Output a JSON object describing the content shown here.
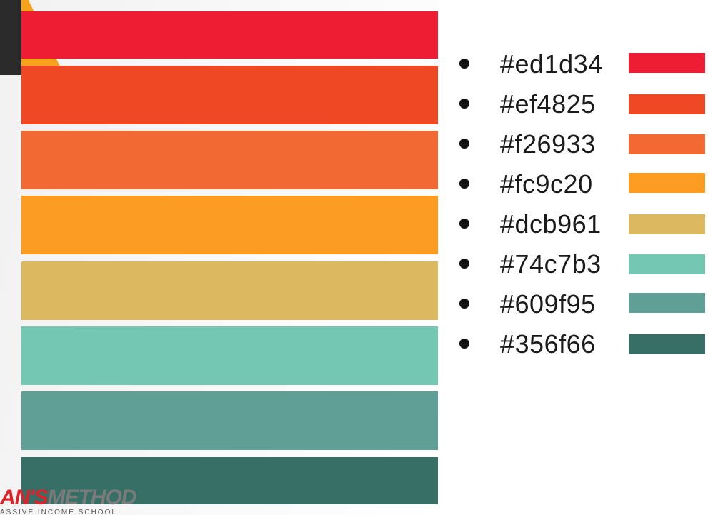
{
  "palette": [
    {
      "hex": "#ed1d34",
      "color": "#ed1d34"
    },
    {
      "hex": "#ef4825",
      "color": "#ef4825"
    },
    {
      "hex": "#f26933",
      "color": "#f26933"
    },
    {
      "hex": "#fc9c20",
      "color": "#fc9c20"
    },
    {
      "hex": "#dcb961",
      "color": "#dcb961"
    },
    {
      "hex": "#74c7b3",
      "color": "#74c7b3"
    },
    {
      "hex": "#609f95",
      "color": "#609f95"
    },
    {
      "hex": "#356f66",
      "color": "#356f66"
    }
  ],
  "logo": {
    "part1": "AN'S",
    "part2": "METHOD",
    "tagline": "ASSIVE INCOME SCHOOL"
  }
}
